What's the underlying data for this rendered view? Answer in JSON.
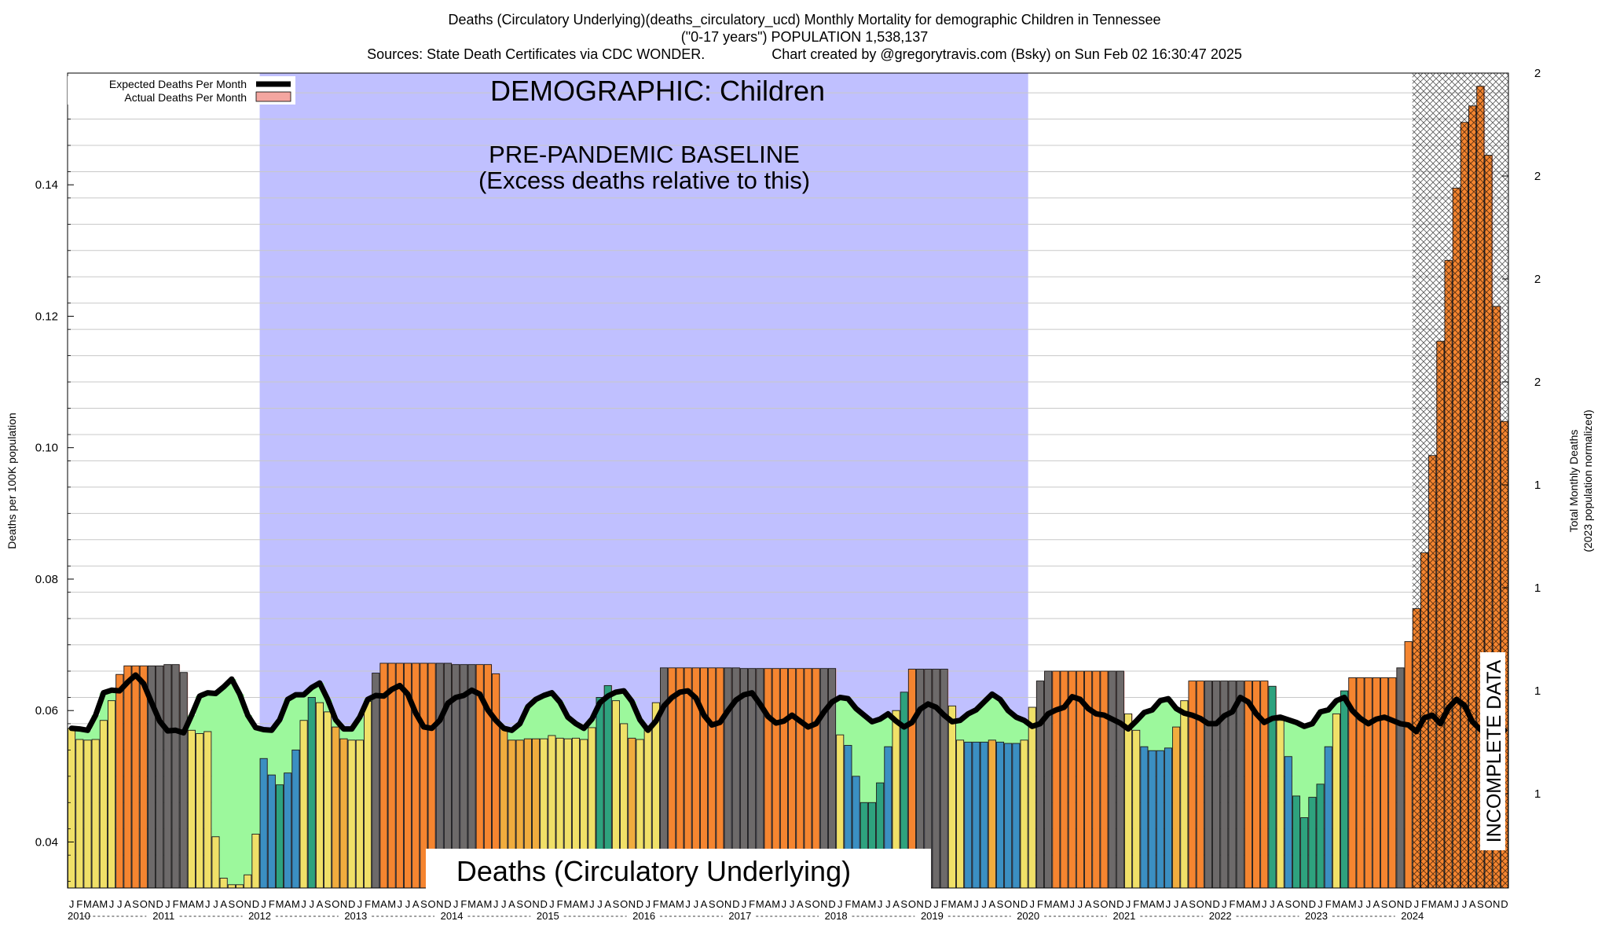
{
  "header": {
    "title": "Deaths (Circulatory Underlying)(deaths_circulatory_ucd) Monthly Mortality for demographic Children in Tennessee",
    "subtitle": "(\"0-17 years\") POPULATION 1,538,137",
    "sources": "Sources: State Death Certificates via CDC WONDER.",
    "credit": "Chart created by @gregorytravis.com (Bsky) on Sun Feb 02 16:30:47 2025"
  },
  "annotations": {
    "demographic": "DEMOGRAPHIC: Children",
    "baseline_1": "PRE-PANDEMIC BASELINE",
    "baseline_2": "(Excess deaths relative to this)",
    "metric_box": "Deaths (Circulatory Underlying)",
    "incomplete": "INCOMPLETE DATA"
  },
  "legend": {
    "expected": "Expected Deaths Per Month",
    "actual": "Actual Deaths Per Month"
  },
  "axes": {
    "ylabel_left": "Deaths per 100K population",
    "ylabel_right_1": "Total Monthly Deaths",
    "ylabel_right_2": "(2023 population normalized)",
    "left_ticks": [
      {
        "value": 0.04,
        "label": "0.04"
      },
      {
        "value": 0.06,
        "label": "0.06"
      },
      {
        "value": 0.08,
        "label": "0.08"
      },
      {
        "value": 0.1,
        "label": "0.10"
      },
      {
        "value": 0.12,
        "label": "0.12"
      },
      {
        "value": 0.14,
        "label": "0.14"
      }
    ],
    "right_ticks": [
      "2",
      "2",
      "2",
      "2",
      "1",
      "1",
      "1",
      "1"
    ],
    "month_letters": "JFMAMJJASOND",
    "years": [
      "2010",
      "2011",
      "2012",
      "2013",
      "2014",
      "2015",
      "2016",
      "2017",
      "2018",
      "2019",
      "2020",
      "2021",
      "2022",
      "2023",
      "2024"
    ]
  },
  "colors": {
    "baseline_region": "#c0c0ff",
    "expected_line": "#000000",
    "excess_fill": "#f4a6a0",
    "deficit_fill": "#9cf89c",
    "bar_palette": [
      "#3b8fc2",
      "#2ea27e",
      "#f0e068",
      "#f0ac3e",
      "#f58530",
      "#6d6a6a"
    ]
  },
  "chart_data": {
    "type": "bar",
    "start": "2010-01",
    "end": "2024-12",
    "ylim": [
      0.033,
      0.157
    ],
    "baseline_period": [
      "2012-01",
      "2019-12"
    ],
    "incomplete_period": [
      "2024-01",
      "2024-12"
    ],
    "series": [
      {
        "name": "Actual Deaths Per Month",
        "values": [
          0.0573,
          0.0556,
          0.0555,
          0.0556,
          0.0585,
          0.0615,
          0.0655,
          0.0668,
          0.0668,
          0.0668,
          0.0668,
          0.0668,
          0.067,
          0.067,
          0.0658,
          0.057,
          0.0565,
          0.0568,
          0.0408,
          0.0345,
          0.0335,
          0.0335,
          0.035,
          0.0412,
          0.0527,
          0.0502,
          0.0487,
          0.0505,
          0.054,
          0.0585,
          0.062,
          0.0612,
          0.0598,
          0.0575,
          0.0557,
          0.0555,
          0.0555,
          0.0614,
          0.0657,
          0.0672,
          0.0672,
          0.0672,
          0.0672,
          0.0672,
          0.0672,
          0.0672,
          0.0672,
          0.0672,
          0.067,
          0.067,
          0.067,
          0.067,
          0.067,
          0.0656,
          0.0575,
          0.0555,
          0.0555,
          0.0557,
          0.0557,
          0.0557,
          0.0562,
          0.0558,
          0.0557,
          0.0558,
          0.0556,
          0.0574,
          0.062,
          0.0638,
          0.0615,
          0.058,
          0.0558,
          0.0556,
          0.0573,
          0.0612,
          0.0665,
          0.0665,
          0.0665,
          0.0665,
          0.0665,
          0.0665,
          0.0665,
          0.0665,
          0.0665,
          0.0665,
          0.0664,
          0.0664,
          0.0664,
          0.0664,
          0.0664,
          0.0664,
          0.0664,
          0.0664,
          0.0664,
          0.0664,
          0.0664,
          0.0664,
          0.0563,
          0.0547,
          0.05,
          0.046,
          0.046,
          0.049,
          0.0545,
          0.06,
          0.0628,
          0.0663,
          0.0663,
          0.0663,
          0.0663,
          0.0663,
          0.0607,
          0.0555,
          0.0552,
          0.0552,
          0.0552,
          0.0555,
          0.0552,
          0.055,
          0.055,
          0.0555,
          0.0605,
          0.0645,
          0.066,
          0.066,
          0.066,
          0.066,
          0.066,
          0.066,
          0.066,
          0.066,
          0.066,
          0.066,
          0.0595,
          0.057,
          0.0545,
          0.0539,
          0.0539,
          0.0543,
          0.0575,
          0.0615,
          0.0645,
          0.0645,
          0.0645,
          0.0645,
          0.0645,
          0.0645,
          0.0645,
          0.0645,
          0.0645,
          0.0645,
          0.0637,
          0.0585,
          0.053,
          0.047,
          0.0437,
          0.0468,
          0.0488,
          0.0545,
          0.0595,
          0.063,
          0.065,
          0.065,
          0.065,
          0.065,
          0.065,
          0.065,
          0.0665,
          0.0705,
          0.0755,
          0.084,
          0.0988,
          0.1162,
          0.1285,
          0.1395,
          0.1495,
          0.152,
          0.155,
          0.1445,
          0.1215,
          0.104
        ]
      },
      {
        "name": "Expected Deaths Per Month",
        "values": [
          0.0573,
          0.0572,
          0.057,
          0.0593,
          0.0627,
          0.0631,
          0.063,
          0.0643,
          0.0654,
          0.0641,
          0.0612,
          0.0584,
          0.0569,
          0.057,
          0.0566,
          0.0593,
          0.0622,
          0.0627,
          0.0626,
          0.0636,
          0.0648,
          0.0625,
          0.0593,
          0.0574,
          0.0571,
          0.057,
          0.0586,
          0.0617,
          0.0624,
          0.0624,
          0.0635,
          0.0642,
          0.0617,
          0.0586,
          0.0572,
          0.0572,
          0.059,
          0.0617,
          0.0623,
          0.0622,
          0.0632,
          0.0638,
          0.0625,
          0.0596,
          0.0575,
          0.0573,
          0.0585,
          0.0611,
          0.062,
          0.0623,
          0.0631,
          0.0625,
          0.0601,
          0.0585,
          0.0573,
          0.057,
          0.058,
          0.0606,
          0.0617,
          0.0623,
          0.0627,
          0.0613,
          0.059,
          0.058,
          0.0573,
          0.0587,
          0.0612,
          0.0622,
          0.0628,
          0.063,
          0.0614,
          0.0586,
          0.057,
          0.0584,
          0.0607,
          0.062,
          0.0628,
          0.063,
          0.0619,
          0.0593,
          0.0578,
          0.0582,
          0.06,
          0.0616,
          0.0624,
          0.0627,
          0.061,
          0.0591,
          0.0581,
          0.0584,
          0.0593,
          0.0584,
          0.0575,
          0.058,
          0.0598,
          0.0613,
          0.062,
          0.0618,
          0.0603,
          0.0593,
          0.0583,
          0.0587,
          0.0595,
          0.0584,
          0.0575,
          0.0582,
          0.0602,
          0.061,
          0.0605,
          0.0593,
          0.0583,
          0.0585,
          0.0595,
          0.0601,
          0.0613,
          0.0625,
          0.0617,
          0.06,
          0.059,
          0.0585,
          0.0576,
          0.058,
          0.0595,
          0.0601,
          0.0605,
          0.0621,
          0.0617,
          0.0603,
          0.0595,
          0.0593,
          0.0587,
          0.0581,
          0.0572,
          0.0584,
          0.0597,
          0.0601,
          0.0615,
          0.0618,
          0.0603,
          0.0596,
          0.0593,
          0.0588,
          0.058,
          0.058,
          0.0592,
          0.0598,
          0.062,
          0.0613,
          0.0595,
          0.0582,
          0.0588,
          0.059,
          0.0586,
          0.0582,
          0.0576,
          0.058,
          0.0598,
          0.0601,
          0.0615,
          0.062,
          0.06,
          0.0588,
          0.058,
          0.0587,
          0.059,
          0.0585,
          0.058,
          0.0578,
          0.0568,
          0.0589,
          0.0593,
          0.058,
          0.0604,
          0.0617,
          0.0608,
          0.0583,
          0.0571,
          0.057,
          0.057,
          0.057
        ]
      }
    ]
  }
}
